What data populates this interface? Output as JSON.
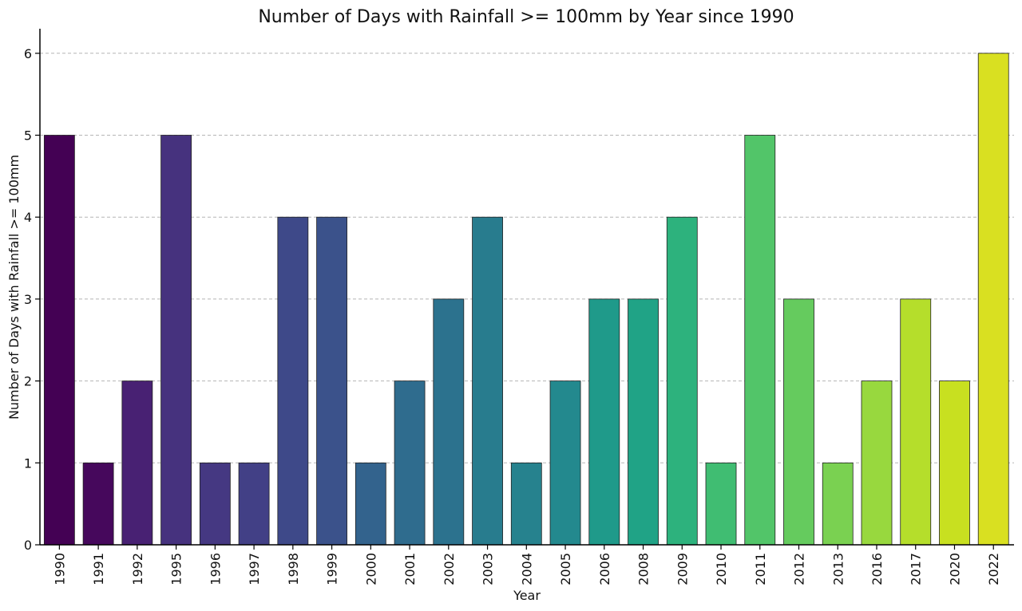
{
  "chart_data": {
    "type": "bar",
    "title": "Number of Days with Rainfall >= 100mm by Year since 1990",
    "xlabel": "Year",
    "ylabel": "Number of Days with Rainfall >= 100mm",
    "categories": [
      "1990",
      "1991",
      "1992",
      "1995",
      "1996",
      "1997",
      "1998",
      "1999",
      "2000",
      "2001",
      "2002",
      "2003",
      "2004",
      "2005",
      "2006",
      "2008",
      "2009",
      "2010",
      "2011",
      "2012",
      "2013",
      "2016",
      "2017",
      "2020",
      "2022"
    ],
    "values": [
      5,
      1,
      2,
      5,
      1,
      1,
      4,
      4,
      1,
      2,
      3,
      4,
      1,
      2,
      3,
      3,
      4,
      1,
      5,
      3,
      1,
      2,
      3,
      2,
      6
    ],
    "colors": [
      "#440154",
      "#46085c",
      "#482173",
      "#46327e",
      "#453882",
      "#424086",
      "#3e4989",
      "#3b528b",
      "#33638d",
      "#2f6c8e",
      "#2c728e",
      "#287c8e",
      "#26828e",
      "#23898e",
      "#1f9a8a",
      "#20a386",
      "#2db27d",
      "#40bd72",
      "#52c569",
      "#65cb5e",
      "#7ad151",
      "#98d83e",
      "#b5de2b",
      "#c8e020",
      "#d9e021"
    ],
    "ylim": [
      0,
      6.3
    ],
    "yticks": [
      0,
      1,
      2,
      3,
      4,
      5,
      6
    ],
    "grid": "y-dashed",
    "legend": "none"
  }
}
